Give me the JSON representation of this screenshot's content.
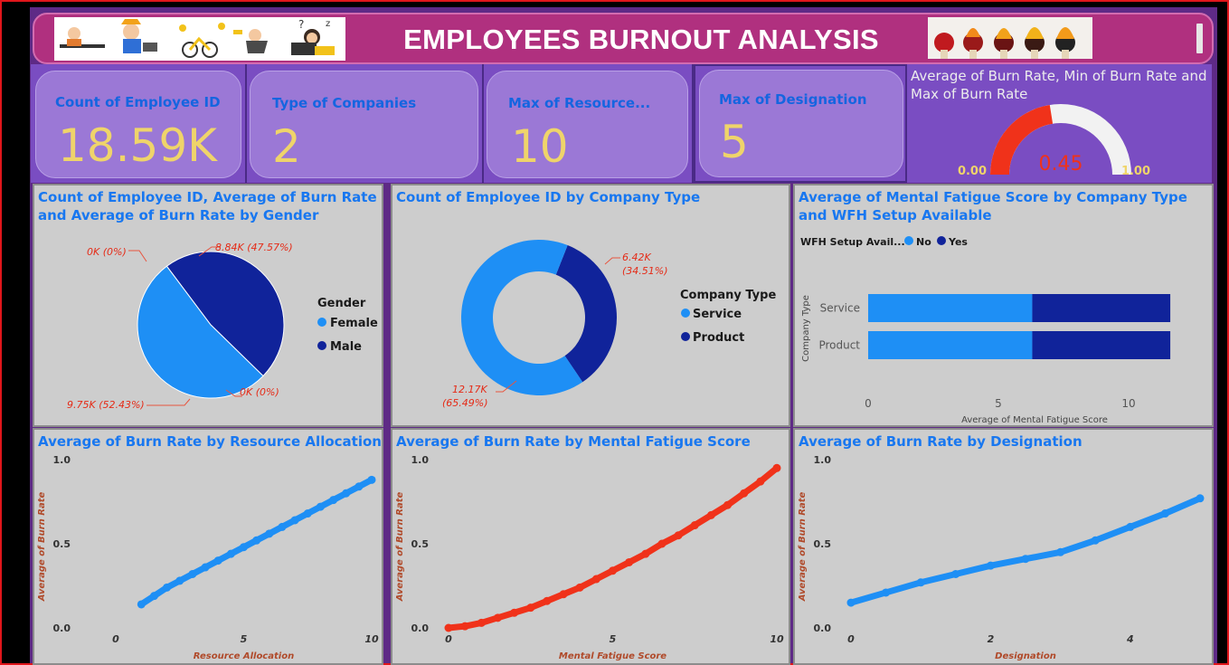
{
  "header": {
    "title": "EMPLOYEES BURNOUT ANALYSIS",
    "left_image": "burnout-cartoons-image",
    "right_image": "burning-matches-image"
  },
  "kpis": [
    {
      "label": "Count of Employee ID",
      "value": "18.59K"
    },
    {
      "label": "Type of Companies",
      "value": "2"
    },
    {
      "label": "Max of Resource...",
      "value": "10"
    },
    {
      "label": "Max of Designation",
      "value": "5"
    }
  ],
  "gauge": {
    "title": "Average of Burn Rate, Min of Burn Rate and Max of Burn Rate",
    "min_label": "0.00",
    "max_label": "1.00",
    "value_label": "0.45",
    "min": 0,
    "max": 1,
    "value": 0.45,
    "fill_color": "#f0321a",
    "track_color": "#f2f2f2"
  },
  "colors": {
    "light_blue": "#1e8ff5",
    "dark_blue": "#10239a",
    "red": "#f0321a",
    "title_blue": "#1877f0"
  },
  "chart_data": [
    {
      "type": "pie",
      "title": "Count of Employee ID, Average of Burn Rate and Average of Burn Rate by Gender",
      "legend_title": "Gender",
      "legend": [
        "Female",
        "Male"
      ],
      "slices": [
        {
          "name": "Female",
          "value": 9.75,
          "label": "9.75K (52.43%)",
          "color": "#1e8ff5"
        },
        {
          "name": "Male",
          "value": 8.84,
          "label": "8.84K (47.57%)",
          "color": "#10239a"
        }
      ],
      "extra_labels": [
        "0K (0%)",
        "0K (0%)"
      ]
    },
    {
      "type": "pie",
      "subtype": "donut",
      "title": "Count of Employee ID by Company Type",
      "legend_title": "Company Type",
      "legend": [
        "Service",
        "Product"
      ],
      "slices": [
        {
          "name": "Service",
          "value": 12.17,
          "label_line1": "12.17K",
          "label_line2": "(65.49%)",
          "color": "#1e8ff5"
        },
        {
          "name": "Product",
          "value": 6.42,
          "label_line1": "6.42K",
          "label_line2": "(34.51%)",
          "color": "#10239a"
        }
      ]
    },
    {
      "type": "bar",
      "orientation": "horizontal",
      "stacked": true,
      "title": "Average of Mental Fatigue Score by Company Type and WFH Setup Available",
      "legend_title": "WFH Setup Avail...",
      "legend": [
        "No",
        "Yes"
      ],
      "categories": [
        "Service",
        "Product"
      ],
      "series": [
        {
          "name": "No",
          "values": [
            6.3,
            6.3
          ],
          "color": "#1e8ff5"
        },
        {
          "name": "Yes",
          "values": [
            5.3,
            5.3
          ],
          "color": "#10239a"
        }
      ],
      "xlabel": "Average of Mental Fatigue Score",
      "ylabel": "Company Type",
      "xticks": [
        "0",
        "5",
        "10"
      ],
      "xlim": [
        0,
        12.5
      ]
    },
    {
      "type": "line",
      "title": "Average of Burn Rate by Resource Allocation",
      "xlabel": "Resource Allocation",
      "ylabel": "Average of Burn Rate",
      "xticks": [
        "0",
        "5",
        "10"
      ],
      "yticks": [
        "0.0",
        "0.5",
        "1.0"
      ],
      "xlim": [
        0,
        10
      ],
      "ylim": [
        0,
        1
      ],
      "color": "#1e8ff5",
      "x": [
        1,
        1.5,
        2,
        2.5,
        3,
        3.5,
        4,
        4.5,
        5,
        5.5,
        6,
        6.5,
        7,
        7.5,
        8,
        8.5,
        9,
        9.5,
        10
      ],
      "y": [
        0.14,
        0.19,
        0.24,
        0.28,
        0.32,
        0.36,
        0.4,
        0.44,
        0.48,
        0.52,
        0.56,
        0.6,
        0.64,
        0.68,
        0.72,
        0.76,
        0.8,
        0.84,
        0.88
      ]
    },
    {
      "type": "line",
      "title": "Average of Burn Rate by Mental Fatigue Score",
      "xlabel": "Mental Fatigue Score",
      "ylabel": "Average of Burn Rate",
      "xticks": [
        "0",
        "5",
        "10"
      ],
      "yticks": [
        "0.0",
        "0.5",
        "1.0"
      ],
      "xlim": [
        0,
        10
      ],
      "ylim": [
        0,
        1
      ],
      "color": "#f0321a",
      "x": [
        0,
        0.5,
        1,
        1.5,
        2,
        2.5,
        3,
        3.5,
        4,
        4.5,
        5,
        5.5,
        6,
        6.5,
        7,
        7.5,
        8,
        8.5,
        9,
        9.5,
        10
      ],
      "y": [
        0.0,
        0.01,
        0.03,
        0.06,
        0.09,
        0.12,
        0.16,
        0.2,
        0.24,
        0.29,
        0.34,
        0.39,
        0.44,
        0.5,
        0.55,
        0.61,
        0.67,
        0.73,
        0.8,
        0.87,
        0.95
      ]
    },
    {
      "type": "line",
      "title": "Average of Burn Rate by Designation",
      "xlabel": "Designation",
      "ylabel": "Average of Burn Rate",
      "xticks": [
        "0",
        "2",
        "4"
      ],
      "yticks": [
        "0.0",
        "0.5",
        "1.0"
      ],
      "xlim": [
        0,
        5
      ],
      "ylim": [
        0,
        1
      ],
      "color": "#1e8ff5",
      "x": [
        0,
        0.5,
        1,
        1.5,
        2,
        2.5,
        3,
        3.5,
        4,
        4.5,
        5
      ],
      "y": [
        0.15,
        0.21,
        0.27,
        0.32,
        0.37,
        0.41,
        0.45,
        0.52,
        0.6,
        0.68,
        0.77
      ]
    }
  ]
}
